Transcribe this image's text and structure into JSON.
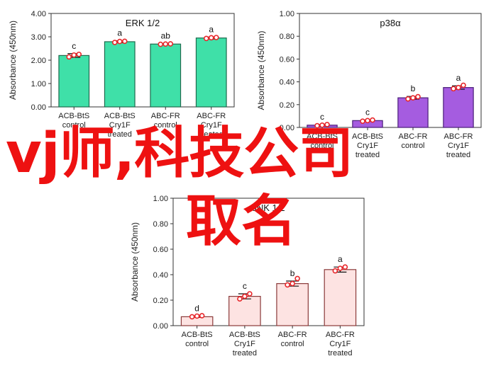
{
  "chart_data": [
    {
      "type": "bar",
      "title": "ERK 1/2",
      "ylabel": "Absorbance (450nm)",
      "ylim": [
        0,
        4.0
      ],
      "yticks": [
        "0.00",
        "1.00",
        "2.00",
        "3.00",
        "4.00"
      ],
      "categories": [
        [
          "ACB-BtS",
          "control"
        ],
        [
          "ACB-BtS",
          "Cry1F",
          "treated"
        ],
        [
          "ABC-FR",
          "control"
        ],
        [
          "ABC-FR",
          "Cry1F",
          "treated"
        ]
      ],
      "values": [
        2.2,
        2.79,
        2.69,
        2.95
      ],
      "errors": [
        0.08,
        0.04,
        0.02,
        0.04
      ],
      "points": [
        [
          2.14,
          2.22,
          2.25
        ],
        [
          2.76,
          2.8,
          2.81
        ],
        [
          2.68,
          2.69,
          2.7
        ],
        [
          2.93,
          2.96,
          2.97
        ]
      ],
      "letters": [
        "c",
        "a",
        "ab",
        "a"
      ],
      "bar_color": "#3fe0a8",
      "bar_edge": "#1f6b4e"
    },
    {
      "type": "bar",
      "title": "p38α",
      "ylabel": "Absorbance (450nm)",
      "ylim": [
        0,
        1.0
      ],
      "yticks": [
        "0.00",
        "0.20",
        "0.40",
        "0.60",
        "0.80",
        "1.00"
      ],
      "categories": [
        [
          "ACB-BtS",
          "control"
        ],
        [
          "ACB-BtS",
          "Cry1F",
          "treated"
        ],
        [
          "ABC-FR",
          "control"
        ],
        [
          "ABC-FR",
          "Cry1F",
          "treated"
        ]
      ],
      "values": [
        0.02,
        0.06,
        0.26,
        0.35
      ],
      "errors": [
        0.005,
        0.005,
        0.012,
        0.015
      ],
      "points": [
        [
          0.015,
          0.02,
          0.025
        ],
        [
          0.055,
          0.06,
          0.065
        ],
        [
          0.25,
          0.26,
          0.27
        ],
        [
          0.34,
          0.35,
          0.37
        ]
      ],
      "letters": [
        "c",
        "c",
        "b",
        "a"
      ],
      "bar_color": "#a55ce0",
      "bar_edge": "#4a1f78"
    },
    {
      "type": "bar",
      "title": "JNK 1/2",
      "ylabel": "Absorbance (450nm)",
      "ylim": [
        0,
        1.0
      ],
      "yticks": [
        "0.00",
        "0.20",
        "0.40",
        "0.60",
        "0.80",
        "1.00"
      ],
      "categories": [
        [
          "ACB-BtS",
          "control"
        ],
        [
          "ACB-BtS",
          "Cry1F",
          "treated"
        ],
        [
          "ABC-FR",
          "control"
        ],
        [
          "ABC-FR",
          "Cry1F",
          "treated"
        ]
      ],
      "values": [
        0.07,
        0.23,
        0.33,
        0.44
      ],
      "errors": [
        0.005,
        0.02,
        0.02,
        0.02
      ],
      "points": [
        [
          0.07,
          0.075,
          0.078
        ],
        [
          0.21,
          0.23,
          0.25
        ],
        [
          0.32,
          0.33,
          0.37
        ],
        [
          0.43,
          0.45,
          0.46
        ]
      ],
      "letters": [
        "d",
        "c",
        "b",
        "a"
      ],
      "bar_color": "#fde3e2",
      "bar_edge": "#8a3a3a"
    }
  ],
  "watermark": {
    "line1": "vj师,科技公司",
    "line2": "取名"
  }
}
